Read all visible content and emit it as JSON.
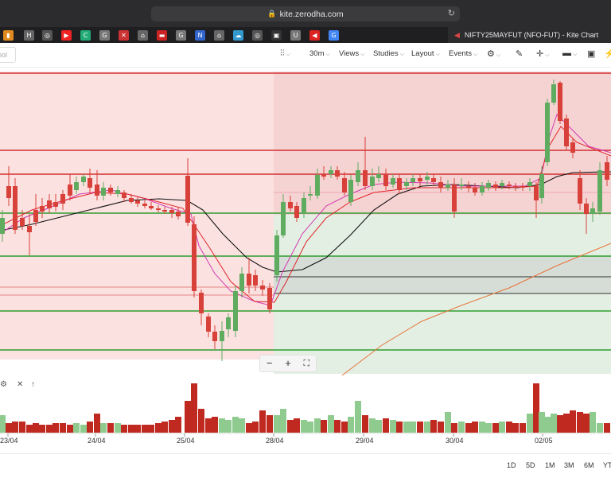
{
  "browser": {
    "url": "kite.zerodha.com",
    "tab_title": "NIFTY25MAYFUT (NFO-FUT) - Kite Chart",
    "favicons": [
      {
        "glyph": "▮",
        "color": "#e08a1e"
      },
      {
        "glyph": "H",
        "color": "#666"
      },
      {
        "glyph": "◎",
        "color": "#555"
      },
      {
        "glyph": "▶",
        "color": "#e22"
      },
      {
        "glyph": "C",
        "color": "#2a7"
      },
      {
        "glyph": "G",
        "color": "#777"
      },
      {
        "glyph": "✕",
        "color": "#c33"
      },
      {
        "glyph": "⌂",
        "color": "#666"
      },
      {
        "glyph": "▬",
        "color": "#c22"
      },
      {
        "glyph": "G",
        "color": "#777"
      },
      {
        "glyph": "N",
        "color": "#36c"
      },
      {
        "glyph": "⌂",
        "color": "#666"
      },
      {
        "glyph": "☁",
        "color": "#39c"
      },
      {
        "glyph": "◎",
        "color": "#555"
      },
      {
        "glyph": "▣",
        "color": "#333"
      },
      {
        "glyph": "U",
        "color": "#777"
      },
      {
        "glyph": "◀",
        "color": "#d22"
      },
      {
        "glyph": "G",
        "color": "#4285f4"
      }
    ]
  },
  "toolbar": {
    "symbol_placeholder": "ool",
    "candle_icon": "candlestick-icon",
    "interval": "30m",
    "views": "Views",
    "studies": "Studies",
    "layout": "Layout",
    "events": "Events",
    "settings_icon": "gear-icon",
    "draw_icon": "pencil-icon",
    "crosshair_icon": "crosshair-icon",
    "comment_icon": "comment-icon",
    "panel_icon": "panel-icon",
    "flash_icon": "bolt-icon"
  },
  "zoom": {
    "minus": "−",
    "plus": "+",
    "fullscreen": "⛶"
  },
  "volume_panel": {
    "settings_icon": "⚙",
    "close_icon": "✕",
    "up_icon": "↑"
  },
  "range_buttons": [
    "1D",
    "5D",
    "1M",
    "3M",
    "6M",
    "YT"
  ],
  "chart_data": {
    "type": "candlestick",
    "interval": "30m",
    "date_ticks": [
      "23/04",
      "24/04",
      "25/04",
      "28/04",
      "29/04",
      "30/04",
      "02/05"
    ],
    "colors": {
      "up": "#5fab5f",
      "down": "#d8403a",
      "band_red": "#f8d6d6",
      "band_green": "#d6eed6"
    },
    "horizontal_levels_color": [
      "red",
      "red",
      "red",
      "green",
      "green",
      "green",
      "green"
    ],
    "volume": {
      "type": "bar"
    }
  }
}
